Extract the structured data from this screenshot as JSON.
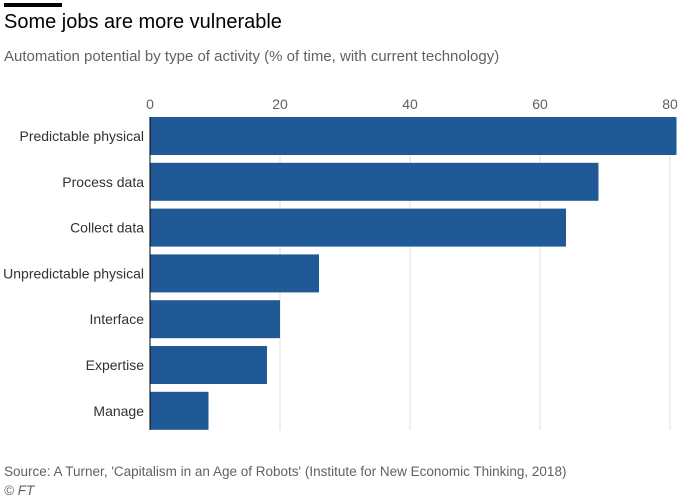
{
  "title": "Some jobs are more vulnerable",
  "subtitle": "Automation potential by type of activity (% of time, with current technology)",
  "source": "Source: A Turner, 'Capitalism in an Age of Robots' (Institute for New Economic Thinking, 2018)",
  "copyright": "© FT",
  "colors": {
    "bar": "#1f5a96",
    "grid": "#e3dfdc",
    "axis": "#66605c"
  },
  "chart_data": {
    "type": "bar",
    "orientation": "horizontal",
    "categories": [
      "Predictable physical",
      "Process data",
      "Collect data",
      "Unpredictable physical",
      "Interface",
      "Expertise",
      "Manage"
    ],
    "values": [
      81,
      69,
      64,
      26,
      20,
      18,
      9
    ],
    "xlim": [
      0,
      80
    ],
    "xticks": [
      0,
      20,
      40,
      60,
      80
    ],
    "title": "Some jobs are more vulnerable",
    "subtitle": "Automation potential by type of activity (% of time, with current technology)",
    "xlabel": "",
    "ylabel": "",
    "grid": "vertical",
    "tick_position": "top",
    "legend": "none"
  }
}
